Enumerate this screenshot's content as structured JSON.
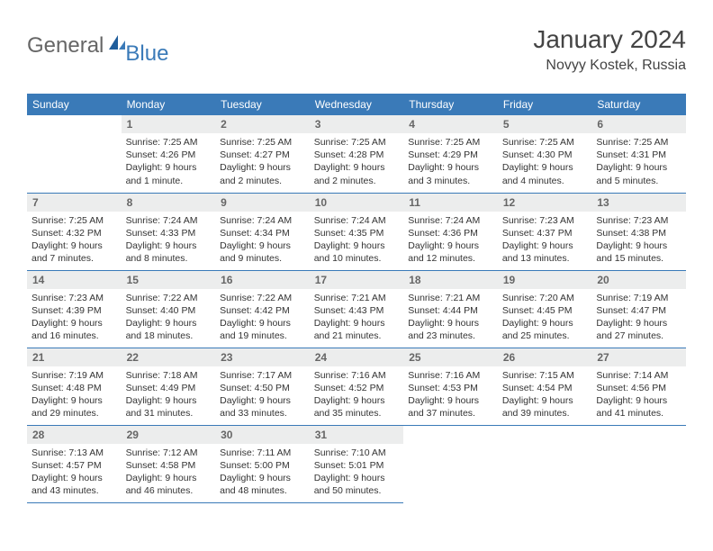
{
  "logo": {
    "text1": "General",
    "text2": "Blue"
  },
  "header": {
    "month": "January 2024",
    "location": "Novyy Kostek, Russia"
  },
  "colors": {
    "header_bg": "#3a7ab8",
    "header_text": "#ffffff",
    "daynum_bg": "#eceded",
    "border": "#3a7ab8"
  },
  "weekdays": [
    "Sunday",
    "Monday",
    "Tuesday",
    "Wednesday",
    "Thursday",
    "Friday",
    "Saturday"
  ],
  "weeks": [
    [
      {
        "n": "",
        "sr": "",
        "ss": "",
        "dl": ""
      },
      {
        "n": "1",
        "sr": "Sunrise: 7:25 AM",
        "ss": "Sunset: 4:26 PM",
        "dl": "Daylight: 9 hours and 1 minute."
      },
      {
        "n": "2",
        "sr": "Sunrise: 7:25 AM",
        "ss": "Sunset: 4:27 PM",
        "dl": "Daylight: 9 hours and 2 minutes."
      },
      {
        "n": "3",
        "sr": "Sunrise: 7:25 AM",
        "ss": "Sunset: 4:28 PM",
        "dl": "Daylight: 9 hours and 2 minutes."
      },
      {
        "n": "4",
        "sr": "Sunrise: 7:25 AM",
        "ss": "Sunset: 4:29 PM",
        "dl": "Daylight: 9 hours and 3 minutes."
      },
      {
        "n": "5",
        "sr": "Sunrise: 7:25 AM",
        "ss": "Sunset: 4:30 PM",
        "dl": "Daylight: 9 hours and 4 minutes."
      },
      {
        "n": "6",
        "sr": "Sunrise: 7:25 AM",
        "ss": "Sunset: 4:31 PM",
        "dl": "Daylight: 9 hours and 5 minutes."
      }
    ],
    [
      {
        "n": "7",
        "sr": "Sunrise: 7:25 AM",
        "ss": "Sunset: 4:32 PM",
        "dl": "Daylight: 9 hours and 7 minutes."
      },
      {
        "n": "8",
        "sr": "Sunrise: 7:24 AM",
        "ss": "Sunset: 4:33 PM",
        "dl": "Daylight: 9 hours and 8 minutes."
      },
      {
        "n": "9",
        "sr": "Sunrise: 7:24 AM",
        "ss": "Sunset: 4:34 PM",
        "dl": "Daylight: 9 hours and 9 minutes."
      },
      {
        "n": "10",
        "sr": "Sunrise: 7:24 AM",
        "ss": "Sunset: 4:35 PM",
        "dl": "Daylight: 9 hours and 10 minutes."
      },
      {
        "n": "11",
        "sr": "Sunrise: 7:24 AM",
        "ss": "Sunset: 4:36 PM",
        "dl": "Daylight: 9 hours and 12 minutes."
      },
      {
        "n": "12",
        "sr": "Sunrise: 7:23 AM",
        "ss": "Sunset: 4:37 PM",
        "dl": "Daylight: 9 hours and 13 minutes."
      },
      {
        "n": "13",
        "sr": "Sunrise: 7:23 AM",
        "ss": "Sunset: 4:38 PM",
        "dl": "Daylight: 9 hours and 15 minutes."
      }
    ],
    [
      {
        "n": "14",
        "sr": "Sunrise: 7:23 AM",
        "ss": "Sunset: 4:39 PM",
        "dl": "Daylight: 9 hours and 16 minutes."
      },
      {
        "n": "15",
        "sr": "Sunrise: 7:22 AM",
        "ss": "Sunset: 4:40 PM",
        "dl": "Daylight: 9 hours and 18 minutes."
      },
      {
        "n": "16",
        "sr": "Sunrise: 7:22 AM",
        "ss": "Sunset: 4:42 PM",
        "dl": "Daylight: 9 hours and 19 minutes."
      },
      {
        "n": "17",
        "sr": "Sunrise: 7:21 AM",
        "ss": "Sunset: 4:43 PM",
        "dl": "Daylight: 9 hours and 21 minutes."
      },
      {
        "n": "18",
        "sr": "Sunrise: 7:21 AM",
        "ss": "Sunset: 4:44 PM",
        "dl": "Daylight: 9 hours and 23 minutes."
      },
      {
        "n": "19",
        "sr": "Sunrise: 7:20 AM",
        "ss": "Sunset: 4:45 PM",
        "dl": "Daylight: 9 hours and 25 minutes."
      },
      {
        "n": "20",
        "sr": "Sunrise: 7:19 AM",
        "ss": "Sunset: 4:47 PM",
        "dl": "Daylight: 9 hours and 27 minutes."
      }
    ],
    [
      {
        "n": "21",
        "sr": "Sunrise: 7:19 AM",
        "ss": "Sunset: 4:48 PM",
        "dl": "Daylight: 9 hours and 29 minutes."
      },
      {
        "n": "22",
        "sr": "Sunrise: 7:18 AM",
        "ss": "Sunset: 4:49 PM",
        "dl": "Daylight: 9 hours and 31 minutes."
      },
      {
        "n": "23",
        "sr": "Sunrise: 7:17 AM",
        "ss": "Sunset: 4:50 PM",
        "dl": "Daylight: 9 hours and 33 minutes."
      },
      {
        "n": "24",
        "sr": "Sunrise: 7:16 AM",
        "ss": "Sunset: 4:52 PM",
        "dl": "Daylight: 9 hours and 35 minutes."
      },
      {
        "n": "25",
        "sr": "Sunrise: 7:16 AM",
        "ss": "Sunset: 4:53 PM",
        "dl": "Daylight: 9 hours and 37 minutes."
      },
      {
        "n": "26",
        "sr": "Sunrise: 7:15 AM",
        "ss": "Sunset: 4:54 PM",
        "dl": "Daylight: 9 hours and 39 minutes."
      },
      {
        "n": "27",
        "sr": "Sunrise: 7:14 AM",
        "ss": "Sunset: 4:56 PM",
        "dl": "Daylight: 9 hours and 41 minutes."
      }
    ],
    [
      {
        "n": "28",
        "sr": "Sunrise: 7:13 AM",
        "ss": "Sunset: 4:57 PM",
        "dl": "Daylight: 9 hours and 43 minutes."
      },
      {
        "n": "29",
        "sr": "Sunrise: 7:12 AM",
        "ss": "Sunset: 4:58 PM",
        "dl": "Daylight: 9 hours and 46 minutes."
      },
      {
        "n": "30",
        "sr": "Sunrise: 7:11 AM",
        "ss": "Sunset: 5:00 PM",
        "dl": "Daylight: 9 hours and 48 minutes."
      },
      {
        "n": "31",
        "sr": "Sunrise: 7:10 AM",
        "ss": "Sunset: 5:01 PM",
        "dl": "Daylight: 9 hours and 50 minutes."
      },
      {
        "n": "",
        "sr": "",
        "ss": "",
        "dl": ""
      },
      {
        "n": "",
        "sr": "",
        "ss": "",
        "dl": ""
      },
      {
        "n": "",
        "sr": "",
        "ss": "",
        "dl": ""
      }
    ]
  ]
}
